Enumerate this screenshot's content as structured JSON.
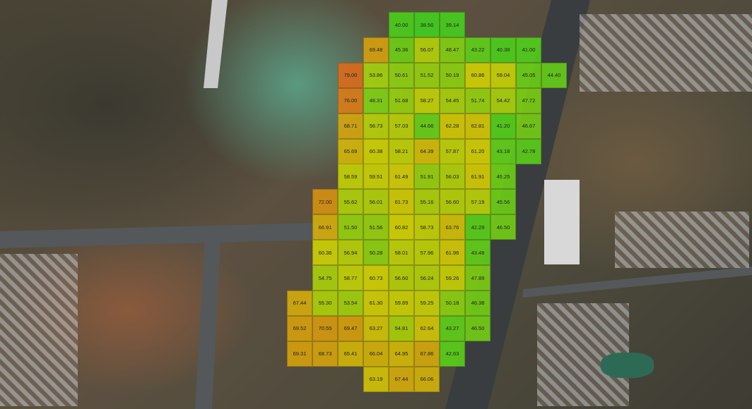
{
  "map": {
    "type": "satellite-heatmap-overlay",
    "color_scale": {
      "low": "#3fd51c",
      "mid": "#d8d800",
      "high": "#e06a18",
      "min": 38.5,
      "max": 79.0
    }
  },
  "grid": [
    {
      "row": 0,
      "start_col": 4,
      "values": [
        "40.00",
        "38.50",
        "39.14"
      ]
    },
    {
      "row": 1,
      "start_col": 3,
      "values": [
        "69.48",
        "45.36",
        "56.07",
        "48.47",
        "43.22",
        "40.38",
        "41.00"
      ]
    },
    {
      "row": 2,
      "start_col": 2,
      "values": [
        "79.00",
        "53.86",
        "50.61",
        "51.52",
        "50.19",
        "60.86",
        "59.04",
        "45.05",
        "44.40"
      ]
    },
    {
      "row": 3,
      "start_col": 2,
      "values": [
        "76.00",
        "48.31",
        "51.68",
        "58.27",
        "54.45",
        "51.74",
        "54.42",
        "47.72"
      ]
    },
    {
      "row": 4,
      "start_col": 2,
      "values": [
        "68.71",
        "56.73",
        "57.03",
        "44.66",
        "62.28",
        "62.81",
        "41.20",
        "46.67"
      ]
    },
    {
      "row": 5,
      "start_col": 2,
      "values": [
        "65.69",
        "60.38",
        "58.21",
        "64.39",
        "57.87",
        "61.20",
        "43.18",
        "42.78"
      ]
    },
    {
      "row": 6,
      "start_col": 2,
      "values": [
        "58.59",
        "59.51",
        "61.49",
        "51.91",
        "56.03",
        "61.91",
        "45.25"
      ]
    },
    {
      "row": 7,
      "start_col": 1,
      "values": [
        "72.00",
        "55.62",
        "56.01",
        "61.73",
        "55.16",
        "56.60",
        "57.19",
        "45.56"
      ]
    },
    {
      "row": 8,
      "start_col": 1,
      "values": [
        "66.91",
        "51.50",
        "51.56",
        "60.82",
        "58.73",
        "63.76",
        "42.29",
        "46.50"
      ]
    },
    {
      "row": 9,
      "start_col": 1,
      "values": [
        "60.36",
        "56.94",
        "50.28",
        "58.01",
        "57.96",
        "61.96",
        "43.48"
      ]
    },
    {
      "row": 10,
      "start_col": 1,
      "values": [
        "54.75",
        "58.77",
        "60.73",
        "56.60",
        "56.24",
        "59.26",
        "47.89"
      ]
    },
    {
      "row": 11,
      "start_col": 0,
      "values": [
        "67.44",
        "55.30",
        "53.54",
        "61.30",
        "59.89",
        "59.25",
        "50.18",
        "46.38"
      ]
    },
    {
      "row": 12,
      "start_col": 0,
      "values": [
        "69.52",
        "70.55",
        "69.47",
        "63.27",
        "54.81",
        "62.64",
        "43.27",
        "46.50"
      ]
    },
    {
      "row": 13,
      "start_col": 0,
      "values": [
        "69.31",
        "68.73",
        "65.41",
        "66.04",
        "64.95",
        "67.86",
        "42.63"
      ]
    },
    {
      "row": 14,
      "start_col": 3,
      "values": [
        "63.19",
        "67.44",
        "66.06"
      ]
    }
  ]
}
